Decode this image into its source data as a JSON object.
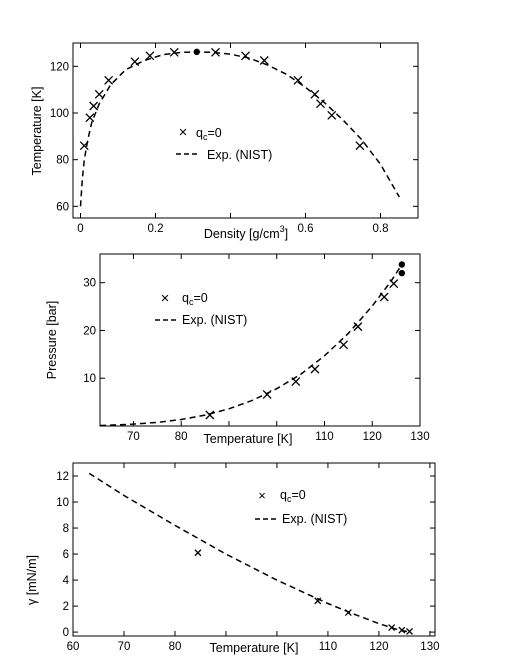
{
  "chart_data": [
    {
      "type": "scatter",
      "xlabel": "Density [g/cm",
      "xlabel_sup": "3",
      "xlabel_tail": "]",
      "ylabel": "Temperature [K]",
      "xlim": [
        -0.02,
        0.9
      ],
      "ylim": [
        55,
        130
      ],
      "xticks": [
        0,
        0.2,
        0.6,
        0.8
      ],
      "xtick_labels": [
        "0",
        "0.2",
        "0.6",
        "0.8"
      ],
      "xticks_unlabeled": [
        0.4
      ],
      "yticks": [
        60,
        80,
        100,
        120
      ],
      "legend": {
        "position": "center",
        "items": [
          {
            "label": "q",
            "sub": "c",
            "tail": "=0",
            "marker": "x"
          },
          {
            "label": "Exp. (NIST)",
            "line": "dashed"
          }
        ]
      },
      "series": [
        {
          "name": "qc=0",
          "marker": "x",
          "x": [
            0.01,
            0.025,
            0.035,
            0.05,
            0.075,
            0.145,
            0.185,
            0.25,
            0.36,
            0.44,
            0.49,
            0.58,
            0.625,
            0.64,
            0.67,
            0.745
          ],
          "y": [
            86,
            98,
            103,
            108,
            114,
            122,
            124.5,
            126,
            126,
            124.5,
            122.5,
            114,
            108,
            104,
            99,
            86
          ]
        },
        {
          "name": "critical point",
          "marker": "dot",
          "x": [
            0.31
          ],
          "y": [
            126.2
          ]
        },
        {
          "name": "Exp. (NIST)",
          "line": "dashed",
          "x": [
            0.0,
            0.005,
            0.01,
            0.02,
            0.03,
            0.05,
            0.08,
            0.12,
            0.17,
            0.22,
            0.27,
            0.31,
            0.35,
            0.4,
            0.45,
            0.5,
            0.55,
            0.6,
            0.65,
            0.7,
            0.75,
            0.8,
            0.85
          ],
          "y": [
            60,
            72,
            80,
            89,
            96,
            104,
            112,
            118.5,
            122.5,
            125,
            126,
            126.2,
            126,
            125.2,
            123.5,
            120.5,
            116.5,
            111,
            104.5,
            97,
            88.5,
            78,
            64
          ]
        }
      ]
    },
    {
      "type": "scatter",
      "xlabel": "Temperature [K]",
      "ylabel": "Pressure [bar]",
      "xlim": [
        63,
        130
      ],
      "ylim": [
        0,
        36
      ],
      "xticks": [
        70,
        80,
        110,
        120,
        130
      ],
      "xtick_labels": [
        "70",
        "80",
        "110",
        "120",
        "130"
      ],
      "xticks_unlabeled": [
        90,
        100
      ],
      "yticks": [
        10,
        20,
        30
      ],
      "legend": {
        "position": "top-left",
        "items": [
          {
            "label": "q",
            "sub": "c",
            "tail": "=0",
            "marker": "x"
          },
          {
            "label": "Exp. (NIST)",
            "line": "dashed"
          }
        ]
      },
      "series": [
        {
          "name": "qc=0",
          "marker": "x",
          "x": [
            86,
            98,
            104,
            108,
            114,
            117,
            122.5,
            124.5
          ],
          "y": [
            2.3,
            6.6,
            9.3,
            11.9,
            17,
            20.8,
            27,
            29.8
          ]
        },
        {
          "name": "critical point",
          "marker": "dot",
          "x": [
            126.2,
            126.2
          ],
          "y": [
            33.8,
            32
          ]
        },
        {
          "name": "Exp. (NIST)",
          "line": "dashed",
          "x": [
            63,
            65,
            70,
            75,
            80,
            85,
            90,
            95,
            100,
            105,
            110,
            115,
            120,
            124,
            126.2
          ],
          "y": [
            0.1,
            0.17,
            0.39,
            0.76,
            1.37,
            2.29,
            3.6,
            5.4,
            7.8,
            10.8,
            14.7,
            19.4,
            25.1,
            30.4,
            33.8
          ]
        }
      ]
    },
    {
      "type": "scatter",
      "xlabel": "Temperature [K]",
      "ylabel": "γ [mN/m]",
      "xlim": [
        60,
        131
      ],
      "ylim": [
        -0.3,
        13
      ],
      "xticks": [
        60,
        70,
        80,
        110,
        120,
        130
      ],
      "xtick_labels": [
        "60",
        "70",
        "80",
        "110",
        "120",
        "130"
      ],
      "xticks_unlabeled": [
        90,
        100
      ],
      "yticks": [
        0,
        2,
        4,
        6,
        8,
        10,
        12
      ],
      "legend": {
        "position": "top-right",
        "items": [
          {
            "label": "q",
            "sub": "c",
            "tail": "=0",
            "marker": "x"
          },
          {
            "label": "Exp. (NIST)",
            "line": "dashed"
          }
        ]
      },
      "series": [
        {
          "name": "qc=0",
          "marker": "x",
          "x": [
            84.5,
            108,
            114,
            122.5,
            124.5,
            126
          ],
          "y": [
            6.1,
            2.4,
            1.5,
            0.35,
            0.15,
            0.05
          ]
        },
        {
          "name": "Exp. (NIST)",
          "line": "dashed",
          "x": [
            63.2,
            70,
            80,
            90,
            100,
            110,
            115,
            120,
            124,
            126.2
          ],
          "y": [
            12.2,
            10.5,
            8.2,
            6.0,
            4.0,
            2.2,
            1.4,
            0.65,
            0.15,
            0
          ]
        }
      ]
    }
  ]
}
